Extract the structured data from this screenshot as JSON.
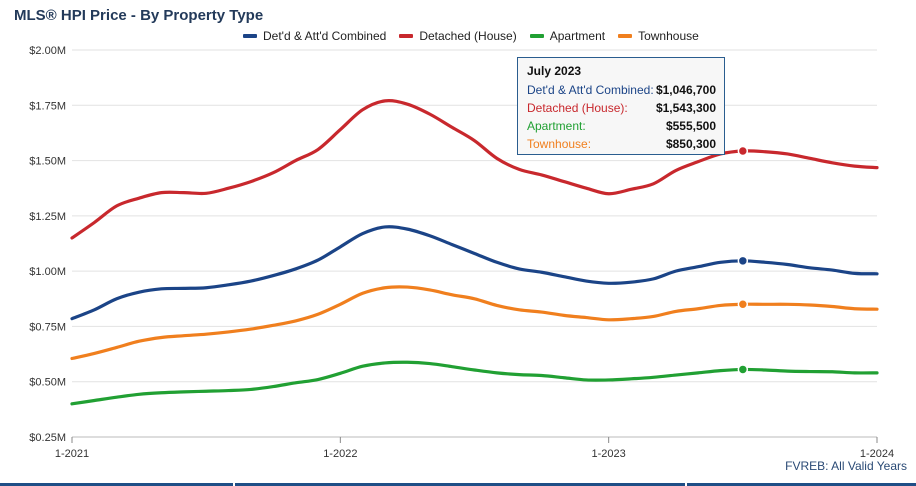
{
  "chart_data": {
    "type": "line",
    "title": "MLS® HPI Price - By Property Type",
    "x_ticks": [
      "1-2021",
      "1-2022",
      "1-2023",
      "1-2024"
    ],
    "y_ticks": [
      "$0.25M",
      "$0.50M",
      "$0.75M",
      "$1.00M",
      "$1.25M",
      "$1.50M",
      "$1.75M",
      "$2.00M"
    ],
    "ylim": [
      0.25,
      2.0
    ],
    "y_unit": "millions of dollars",
    "x_range": [
      "2021-01",
      "2024-01"
    ],
    "grid": true,
    "legend_position": "top",
    "x": [
      "2021-01",
      "2021-02",
      "2021-03",
      "2021-04",
      "2021-05",
      "2021-06",
      "2021-07",
      "2021-08",
      "2021-09",
      "2021-10",
      "2021-11",
      "2021-12",
      "2022-01",
      "2022-02",
      "2022-03",
      "2022-04",
      "2022-05",
      "2022-06",
      "2022-07",
      "2022-08",
      "2022-09",
      "2022-10",
      "2022-11",
      "2022-12",
      "2023-01",
      "2023-02",
      "2023-03",
      "2023-04",
      "2023-05",
      "2023-06",
      "2023-07",
      "2023-08",
      "2023-09",
      "2023-10",
      "2023-11",
      "2023-12",
      "2024-01"
    ],
    "series": [
      {
        "name": "Det'd & Att'd Combined",
        "color": "#1b4487",
        "values": [
          0.785,
          0.825,
          0.875,
          0.905,
          0.92,
          0.922,
          0.925,
          0.938,
          0.955,
          0.98,
          1.01,
          1.05,
          1.11,
          1.17,
          1.2,
          1.19,
          1.16,
          1.12,
          1.08,
          1.04,
          1.01,
          0.995,
          0.975,
          0.955,
          0.945,
          0.95,
          0.965,
          1.0,
          1.02,
          1.04,
          1.0467,
          1.04,
          1.03,
          1.015,
          1.005,
          0.99,
          0.988
        ]
      },
      {
        "name": "Detached (House)",
        "color": "#c8282d",
        "values": [
          1.15,
          1.22,
          1.295,
          1.33,
          1.355,
          1.355,
          1.352,
          1.375,
          1.405,
          1.445,
          1.5,
          1.55,
          1.64,
          1.73,
          1.77,
          1.755,
          1.71,
          1.65,
          1.59,
          1.51,
          1.46,
          1.435,
          1.405,
          1.375,
          1.35,
          1.37,
          1.395,
          1.455,
          1.495,
          1.53,
          1.5433,
          1.54,
          1.53,
          1.51,
          1.49,
          1.475,
          1.468
        ]
      },
      {
        "name": "Apartment",
        "color": "#21a033",
        "values": [
          0.4,
          0.415,
          0.43,
          0.443,
          0.45,
          0.454,
          0.457,
          0.46,
          0.465,
          0.478,
          0.495,
          0.51,
          0.538,
          0.57,
          0.585,
          0.588,
          0.582,
          0.568,
          0.553,
          0.54,
          0.532,
          0.528,
          0.518,
          0.508,
          0.508,
          0.513,
          0.52,
          0.53,
          0.54,
          0.55,
          0.5555,
          0.553,
          0.548,
          0.546,
          0.545,
          0.54,
          0.54
        ]
      },
      {
        "name": "Townhouse",
        "color": "#f07f1e",
        "values": [
          0.605,
          0.628,
          0.655,
          0.683,
          0.7,
          0.708,
          0.715,
          0.725,
          0.738,
          0.755,
          0.775,
          0.805,
          0.85,
          0.9,
          0.925,
          0.928,
          0.915,
          0.893,
          0.875,
          0.845,
          0.825,
          0.815,
          0.8,
          0.79,
          0.78,
          0.785,
          0.795,
          0.818,
          0.83,
          0.845,
          0.8503,
          0.85,
          0.85,
          0.847,
          0.84,
          0.83,
          0.828
        ]
      }
    ],
    "highlight_index": 30,
    "tooltip": {
      "date": "July 2023",
      "rows": [
        {
          "label": "Det'd & Att'd Combined:",
          "value": "$1,046,700",
          "color": "#1b4487"
        },
        {
          "label": "Detached (House):",
          "value": "$1,543,300",
          "color": "#c8282d"
        },
        {
          "label": "Apartment:",
          "value": "$555,500",
          "color": "#21a033"
        },
        {
          "label": "Townhouse:",
          "value": "$850,300",
          "color": "#f07f1e"
        }
      ]
    },
    "source_note": "FVREB: All Valid Years"
  }
}
